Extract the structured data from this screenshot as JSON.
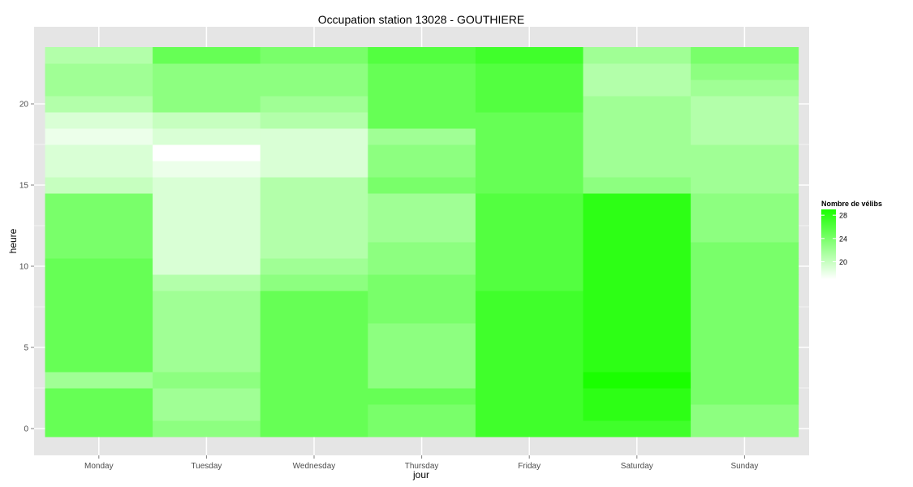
{
  "chart_data": {
    "type": "heatmap",
    "title": "Occupation station 13028 - GOUTHIERE",
    "xlabel": "jour",
    "ylabel": "heure",
    "x_categories": [
      "Monday",
      "Tuesday",
      "Wednesday",
      "Thursday",
      "Friday",
      "Saturday",
      "Sunday"
    ],
    "y_values": [
      0,
      1,
      2,
      3,
      4,
      5,
      6,
      7,
      8,
      9,
      10,
      11,
      12,
      13,
      14,
      15,
      16,
      17,
      18,
      19,
      20,
      21,
      22,
      23
    ],
    "y_ticks": [
      0,
      5,
      10,
      15,
      20
    ],
    "ylim": [
      -0.5,
      23.5
    ],
    "grid": true,
    "values": [
      [
        25,
        23,
        25,
        24,
        27,
        27,
        23
      ],
      [
        25,
        22,
        25,
        24,
        27,
        28,
        23
      ],
      [
        25,
        22,
        25,
        25,
        27,
        28,
        24
      ],
      [
        22,
        23,
        25,
        23,
        27,
        29,
        24
      ],
      [
        25,
        22,
        25,
        23,
        27,
        28,
        24
      ],
      [
        25,
        22,
        25,
        23,
        27,
        28,
        24
      ],
      [
        25,
        22,
        25,
        23,
        27,
        28,
        24
      ],
      [
        25,
        22,
        25,
        24,
        27,
        28,
        24
      ],
      [
        25,
        22,
        25,
        24,
        27,
        28,
        24
      ],
      [
        25,
        21,
        23,
        24,
        26,
        28,
        24
      ],
      [
        25,
        19,
        22,
        23,
        26,
        28,
        24
      ],
      [
        24,
        19,
        21,
        23,
        26,
        28,
        24
      ],
      [
        24,
        19,
        21,
        22,
        26,
        28,
        23
      ],
      [
        24,
        19,
        21,
        22,
        26,
        28,
        23
      ],
      [
        24,
        19,
        21,
        22,
        26,
        28,
        23
      ],
      [
        20,
        19,
        21,
        24,
        25,
        23,
        22
      ],
      [
        19,
        18,
        19,
        23,
        25,
        22,
        22
      ],
      [
        19,
        17,
        19,
        23,
        25,
        22,
        22
      ],
      [
        18,
        19,
        19,
        22,
        25,
        22,
        21
      ],
      [
        19,
        20,
        21,
        25,
        25,
        22,
        21
      ],
      [
        21,
        23,
        22,
        25,
        26,
        22,
        21
      ],
      [
        22,
        23,
        23,
        25,
        26,
        21,
        22
      ],
      [
        22,
        23,
        23,
        25,
        26,
        21,
        23
      ],
      [
        21,
        25,
        24,
        26,
        27,
        22,
        24
      ]
    ],
    "color_scale": {
      "title": "Nombre de vélibs",
      "low": 17,
      "high": 29,
      "low_color": "#ffffff",
      "high_color": "#1aff00",
      "ticks": [
        20,
        24,
        28
      ]
    },
    "panel_background": "#e5e5e5",
    "grid_color": "#ffffff"
  }
}
